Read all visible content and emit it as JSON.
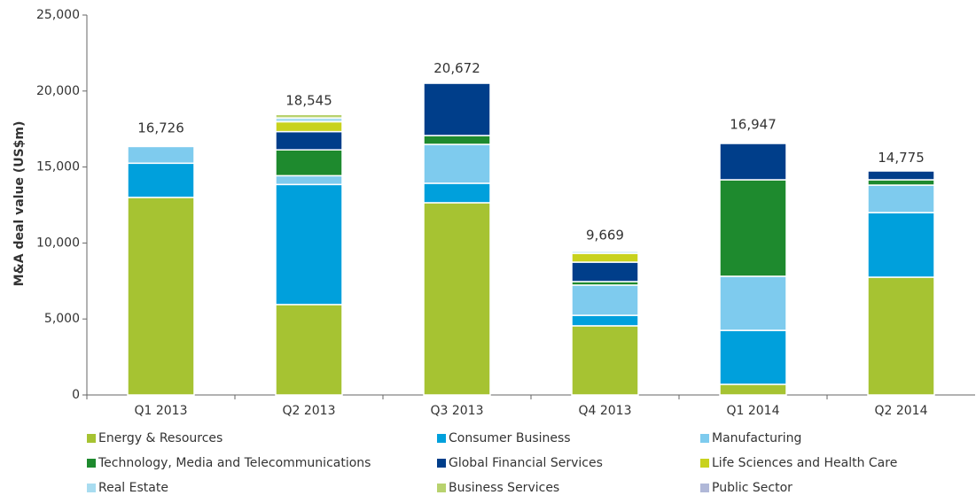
{
  "chart_data": {
    "type": "stacked_bar",
    "y_label": "M&A deal value (US$m)",
    "categories": [
      "Q1 2013",
      "Q2 2013",
      "Q3 2013",
      "Q4 2013",
      "Q1 2014",
      "Q2 2014"
    ],
    "series": [
      {
        "name": "Energy & Resources",
        "color": "#a6c332",
        "values": [
          13000,
          5950,
          12650,
          4550,
          700,
          7750
        ]
      },
      {
        "name": "Consumer Business",
        "color": "#00a0dc",
        "values": [
          2250,
          7900,
          1280,
          690,
          3550,
          4250
        ]
      },
      {
        "name": "Manufacturing",
        "color": "#7ecbee",
        "values": [
          1100,
          580,
          2560,
          1990,
          3560,
          1810
        ]
      },
      {
        "name": "Technology, Media and Telecommunications",
        "color": "#1e8a2e",
        "values": [
          0,
          1700,
          580,
          230,
          6350,
          350
        ]
      },
      {
        "name": "Global Financial Services",
        "color": "#003e8a",
        "values": [
          0,
          1200,
          3440,
          1280,
          2390,
          580
        ]
      },
      {
        "name": "Life Sciences and Health Care",
        "color": "#c8d21e",
        "values": [
          0,
          650,
          0,
          580,
          0,
          0
        ]
      },
      {
        "name": "Real Estate",
        "color": "#a8dcf0",
        "values": [
          0,
          250,
          0,
          130,
          0,
          0
        ]
      },
      {
        "name": "Business Services",
        "color": "#b8d26e",
        "values": [
          0,
          230,
          0,
          0,
          0,
          0
        ]
      },
      {
        "name": "Public Sector",
        "color": "#b0b8d8",
        "values": [
          0,
          80,
          0,
          0,
          0,
          0
        ]
      }
    ],
    "totals": {
      "values": [
        16726,
        18545,
        20672,
        9669,
        16947,
        14775
      ],
      "value_labels": [
        "16,726",
        "18,545",
        "20,672",
        "9,669",
        "16,947",
        "14,775"
      ]
    },
    "ylim": [
      0,
      25000
    ],
    "yticks": [
      0,
      {
        "value": 5000,
        "label": "5,000"
      },
      {
        "value": 10000,
        "label": "10,000"
      },
      {
        "value": 15000,
        "label": "15,000"
      },
      {
        "value": 20000,
        "label": "20,000"
      },
      {
        "value": 25000,
        "label": "25,000"
      }
    ],
    "legend": "bottom"
  }
}
